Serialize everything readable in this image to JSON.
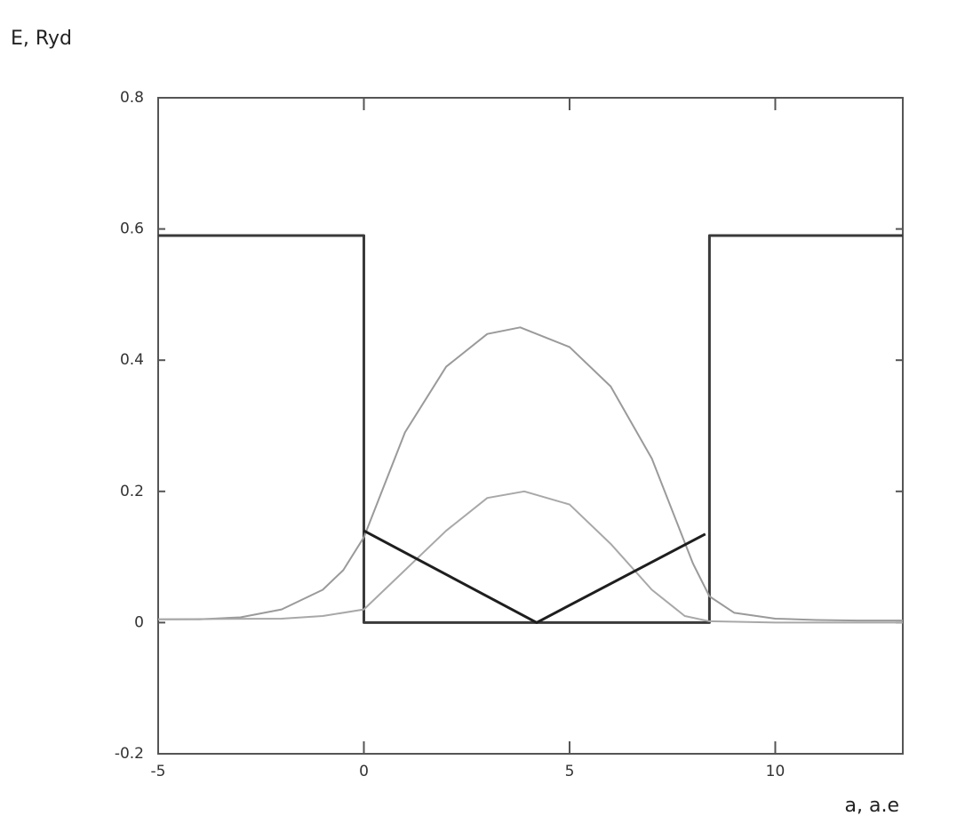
{
  "chart_data": {
    "type": "line",
    "y_label": "E, Ryd",
    "x_label": "a, a.e",
    "xlim": [
      -5,
      13.1
    ],
    "ylim": [
      -0.2,
      0.8
    ],
    "xticks": [
      -5,
      0,
      5,
      10
    ],
    "yticks": [
      -0.2,
      0,
      0.2,
      0.4,
      0.6,
      0.8
    ],
    "grid": false,
    "series": [
      {
        "color": "#3a3a3a",
        "width": 3,
        "x": [
          -5,
          0,
          0,
          8.4,
          8.4,
          13.1
        ],
        "values": [
          0.59,
          0.59,
          0,
          0,
          0.59,
          0.59
        ]
      },
      {
        "color": "#9a9a9a",
        "width": 2,
        "x": [
          -5,
          -4,
          -3,
          -2,
          -1,
          -0.5,
          0,
          0.5,
          1,
          2,
          3,
          3.8,
          5,
          6,
          7,
          8,
          8.4,
          9,
          10,
          11,
          12,
          13.1
        ],
        "values": [
          0.005,
          0.005,
          0.008,
          0.02,
          0.05,
          0.08,
          0.13,
          0.21,
          0.29,
          0.39,
          0.44,
          0.45,
          0.42,
          0.36,
          0.25,
          0.09,
          0.04,
          0.015,
          0.006,
          0.004,
          0.003,
          0.003
        ]
      },
      {
        "color": "#a8a8a8",
        "width": 2,
        "x": [
          -5,
          -2,
          -1,
          0,
          1,
          2,
          3,
          3.9,
          5,
          6,
          7,
          7.8,
          8.4,
          10,
          13.1
        ],
        "values": [
          0.005,
          0.006,
          0.01,
          0.02,
          0.08,
          0.14,
          0.19,
          0.2,
          0.18,
          0.12,
          0.05,
          0.01,
          0.002,
          0,
          0
        ]
      },
      {
        "color": "#1e1e1e",
        "width": 3,
        "x": [
          0,
          4.2,
          8.3
        ],
        "values": [
          0.14,
          0,
          0.135
        ]
      }
    ]
  }
}
